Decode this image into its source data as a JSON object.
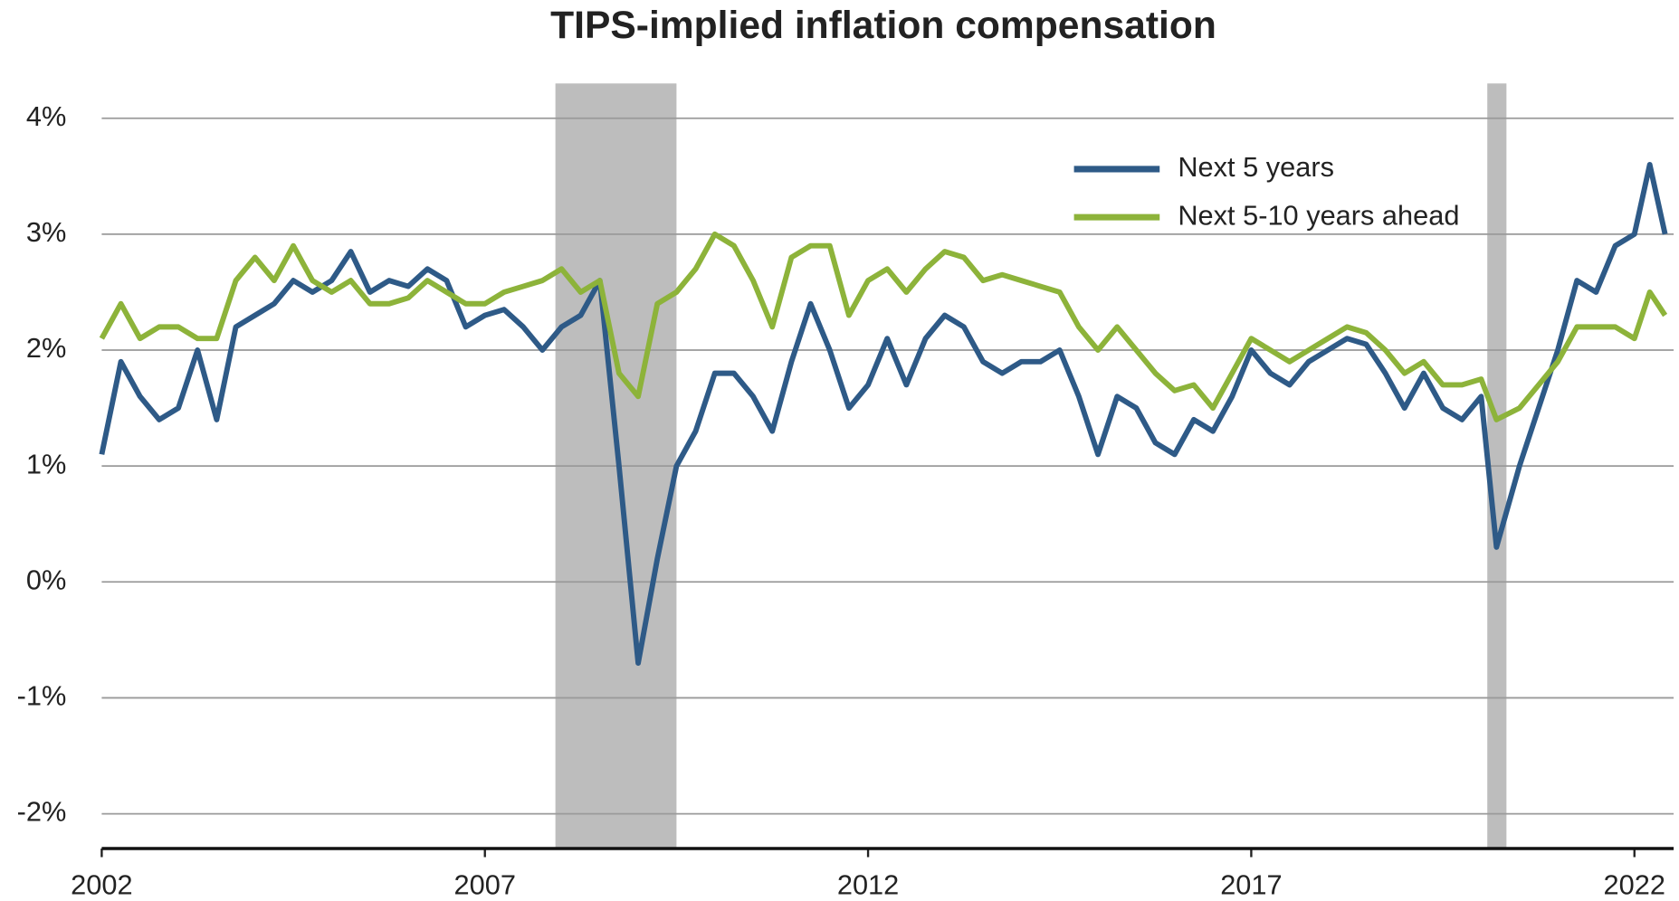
{
  "chart_data": {
    "type": "line",
    "title": "TIPS-implied inflation compensation",
    "x": [
      2002.0,
      2002.25,
      2002.5,
      2002.75,
      2003.0,
      2003.25,
      2003.5,
      2003.75,
      2004.0,
      2004.25,
      2004.5,
      2004.75,
      2005.0,
      2005.25,
      2005.5,
      2005.75,
      2006.0,
      2006.25,
      2006.5,
      2006.75,
      2007.0,
      2007.25,
      2007.5,
      2007.75,
      2008.0,
      2008.25,
      2008.5,
      2008.75,
      2009.0,
      2009.25,
      2009.5,
      2009.75,
      2010.0,
      2010.25,
      2010.5,
      2010.75,
      2011.0,
      2011.25,
      2011.5,
      2011.75,
      2012.0,
      2012.25,
      2012.5,
      2012.75,
      2013.0,
      2013.25,
      2013.5,
      2013.75,
      2014.0,
      2014.25,
      2014.5,
      2014.75,
      2015.0,
      2015.25,
      2015.5,
      2015.75,
      2016.0,
      2016.25,
      2016.5,
      2016.75,
      2017.0,
      2017.25,
      2017.5,
      2017.75,
      2018.0,
      2018.25,
      2018.5,
      2018.75,
      2019.0,
      2019.25,
      2019.5,
      2019.75,
      2020.0,
      2020.2,
      2020.5,
      2020.75,
      2021.0,
      2021.25,
      2021.5,
      2021.75,
      2022.0,
      2022.2,
      2022.4
    ],
    "series": [
      {
        "name": "Next 5 years",
        "color": "#2e5a87",
        "values": [
          1.1,
          1.9,
          1.6,
          1.4,
          1.5,
          2.0,
          1.4,
          2.2,
          2.3,
          2.4,
          2.6,
          2.5,
          2.6,
          2.85,
          2.5,
          2.6,
          2.55,
          2.7,
          2.6,
          2.2,
          2.3,
          2.35,
          2.2,
          2.0,
          2.2,
          2.3,
          2.6,
          1.0,
          -0.7,
          0.2,
          1.0,
          1.3,
          1.8,
          1.8,
          1.6,
          1.3,
          1.9,
          2.4,
          2.0,
          1.5,
          1.7,
          2.1,
          1.7,
          2.1,
          2.3,
          2.2,
          1.9,
          1.8,
          1.9,
          1.9,
          2.0,
          1.6,
          1.1,
          1.6,
          1.5,
          1.2,
          1.1,
          1.4,
          1.3,
          1.6,
          2.0,
          1.8,
          1.7,
          1.9,
          2.0,
          2.1,
          2.05,
          1.8,
          1.5,
          1.8,
          1.5,
          1.4,
          1.6,
          0.3,
          1.0,
          1.5,
          2.0,
          2.6,
          2.5,
          2.9,
          3.0,
          3.6,
          3.0
        ]
      },
      {
        "name": "Next 5-10 years ahead",
        "color": "#8db33a",
        "values": [
          2.1,
          2.4,
          2.1,
          2.2,
          2.2,
          2.1,
          2.1,
          2.6,
          2.8,
          2.6,
          2.9,
          2.6,
          2.5,
          2.6,
          2.4,
          2.4,
          2.45,
          2.6,
          2.5,
          2.4,
          2.4,
          2.5,
          2.55,
          2.6,
          2.7,
          2.5,
          2.6,
          1.8,
          1.6,
          2.4,
          2.5,
          2.7,
          3.0,
          2.9,
          2.6,
          2.2,
          2.8,
          2.9,
          2.9,
          2.3,
          2.6,
          2.7,
          2.5,
          2.7,
          2.85,
          2.8,
          2.6,
          2.65,
          2.6,
          2.55,
          2.5,
          2.2,
          2.0,
          2.2,
          2.0,
          1.8,
          1.65,
          1.7,
          1.5,
          1.8,
          2.1,
          2.0,
          1.9,
          2.0,
          2.1,
          2.2,
          2.15,
          2.0,
          1.8,
          1.9,
          1.7,
          1.7,
          1.75,
          1.4,
          1.5,
          1.7,
          1.9,
          2.2,
          2.2,
          2.2,
          2.1,
          2.5,
          2.3
        ]
      }
    ],
    "xlim": [
      2002,
      2022.4
    ],
    "xticks": [
      2002,
      2007,
      2012,
      2017,
      2022
    ],
    "ylim": [
      -2.3,
      4.3
    ],
    "yticks": [
      {
        "value": -2,
        "label": "-2%"
      },
      {
        "value": -1,
        "label": "-1%"
      },
      {
        "value": 0,
        "label": "0%"
      },
      {
        "value": 1,
        "label": "1%"
      },
      {
        "value": 2,
        "label": "2%"
      },
      {
        "value": 3,
        "label": "3%"
      },
      {
        "value": 4,
        "label": "4%"
      }
    ],
    "shaded_periods": [
      [
        2007.92,
        2009.5
      ],
      [
        2020.08,
        2020.33
      ]
    ],
    "shade_color": "#bdbdbd",
    "grid": true,
    "legend": "upper right"
  }
}
